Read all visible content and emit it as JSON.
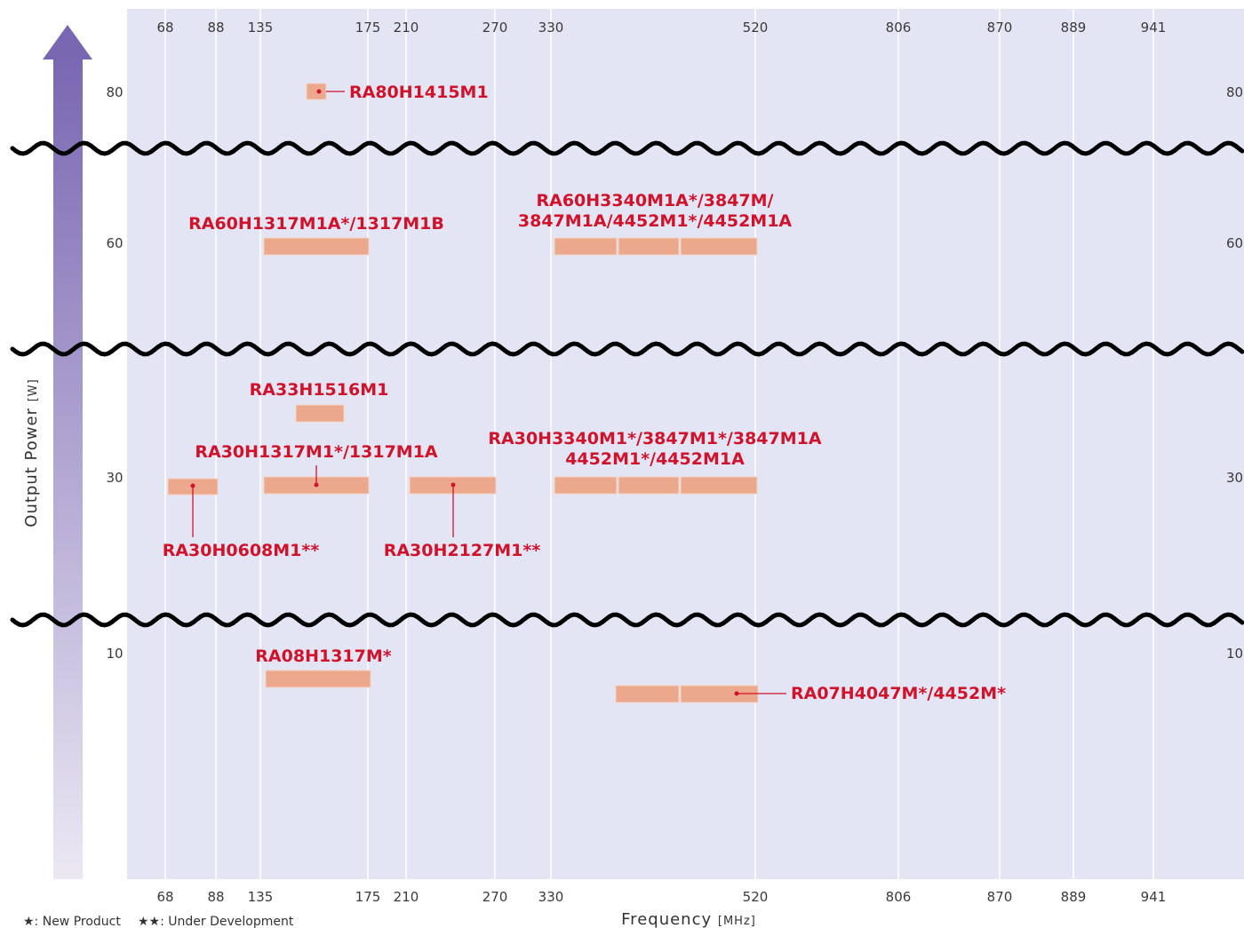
{
  "chart_data": {
    "type": "bar",
    "xlabel": "Frequency",
    "xunit": "[MHz]",
    "ylabel": "Output Power",
    "yunit": "[W]",
    "x_ticks": [
      "68",
      "88",
      "135",
      "175",
      "210",
      "270",
      "330",
      "520",
      "806",
      "870",
      "889",
      "941"
    ],
    "y_ticks": [
      "80",
      "60",
      "30",
      "10"
    ],
    "legend": {
      "new_product": "★: New Product",
      "under_development": "★★: Under Development"
    },
    "products": [
      {
        "label_lines": [
          "RA80H1415M1"
        ],
        "freq_range": [
          "135",
          "175"
        ],
        "power_w": 80
      },
      {
        "label_lines": [
          "RA60H1317M1A*/1317M1B"
        ],
        "freq_range": [
          "135",
          "175"
        ],
        "power_w": 60
      },
      {
        "label_lines": [
          "RA60H3340M1A*/3847M/",
          "3847M1A/4452M1*/4452M1A"
        ],
        "freq_range": [
          "330",
          "520"
        ],
        "power_w": 60
      },
      {
        "label_lines": [
          "RA33H1516M1"
        ],
        "freq_range": [
          "135",
          "175"
        ],
        "power_w": 33
      },
      {
        "label_lines": [
          "RA30H1317M1*/1317M1A"
        ],
        "freq_range": [
          "135",
          "175"
        ],
        "power_w": 30
      },
      {
        "label_lines": [
          "RA30H3340M1*/3847M1*/3847M1A",
          "4452M1*/4452M1A"
        ],
        "freq_range": [
          "330",
          "520"
        ],
        "power_w": 30
      },
      {
        "label_lines": [
          "RA30H0608M1**"
        ],
        "freq_range": [
          "68",
          "88"
        ],
        "power_w": 30
      },
      {
        "label_lines": [
          "RA30H2127M1**"
        ],
        "freq_range": [
          "210",
          "270"
        ],
        "power_w": 30
      },
      {
        "label_lines": [
          "RA08H1317M*"
        ],
        "freq_range": [
          "135",
          "175"
        ],
        "power_w": 8
      },
      {
        "label_lines": [
          "RA07H4047M*/4452M*"
        ],
        "freq_range": [
          "400",
          "520"
        ],
        "power_w": 7
      }
    ],
    "colors": {
      "plot_background": "#e3e5f5",
      "bar": "#eca88c",
      "label": "#d0122a",
      "arrow_top": "#7a67b2",
      "arrow_bottom": "#ebe8f3"
    }
  }
}
